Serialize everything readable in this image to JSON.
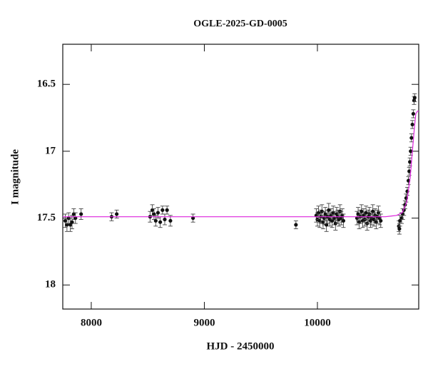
{
  "chart_data": {
    "type": "scatter",
    "title": "OGLE-2025-GD-0005",
    "x_label": "HJD - 2450000",
    "y_label": "I magnitude",
    "xlim": [
      7748,
      10896
    ],
    "ylim": [
      16.2,
      18.18
    ],
    "y_inverted": true,
    "xticks": [
      8000,
      9000,
      10000
    ],
    "yticks": [
      16.5,
      17,
      17.5,
      18
    ],
    "points": {
      "color": "#111111",
      "x": [
        7770,
        7785,
        7800,
        7815,
        7830,
        7845,
        7860,
        7910,
        8180,
        8225,
        8520,
        8540,
        8555,
        8570,
        8590,
        8610,
        8630,
        8650,
        8670,
        8700,
        8900,
        9810,
        9990,
        10000,
        10010,
        10020,
        10030,
        10040,
        10050,
        10060,
        10070,
        10080,
        10090,
        10100,
        10110,
        10120,
        10130,
        10140,
        10150,
        10160,
        10170,
        10180,
        10190,
        10200,
        10210,
        10220,
        10230,
        10350,
        10360,
        10370,
        10380,
        10390,
        10400,
        10410,
        10420,
        10430,
        10440,
        10450,
        10460,
        10470,
        10480,
        10490,
        10500,
        10510,
        10520,
        10530,
        10540,
        10550,
        10560,
        10720,
        10725,
        10730,
        10745,
        10755,
        10765,
        10775,
        10785,
        10795,
        10805,
        10812,
        10818,
        10825,
        10832,
        10840,
        10848,
        10855,
        10860
      ],
      "values": [
        17.52,
        17.55,
        17.5,
        17.55,
        17.53,
        17.47,
        17.5,
        17.47,
        17.49,
        17.47,
        17.49,
        17.44,
        17.47,
        17.52,
        17.46,
        17.53,
        17.44,
        17.51,
        17.44,
        17.52,
        17.5,
        17.55,
        17.48,
        17.51,
        17.46,
        17.52,
        17.49,
        17.45,
        17.53,
        17.5,
        17.47,
        17.55,
        17.49,
        17.44,
        17.51,
        17.48,
        17.52,
        17.46,
        17.5,
        17.54,
        17.47,
        17.49,
        17.51,
        17.45,
        17.5,
        17.48,
        17.52,
        17.5,
        17.47,
        17.53,
        17.49,
        17.45,
        17.52,
        17.48,
        17.51,
        17.46,
        17.54,
        17.49,
        17.47,
        17.52,
        17.5,
        17.45,
        17.51,
        17.48,
        17.53,
        17.49,
        17.46,
        17.5,
        17.52,
        17.56,
        17.58,
        17.52,
        17.5,
        17.47,
        17.44,
        17.4,
        17.35,
        17.3,
        17.22,
        17.15,
        17.08,
        17.0,
        16.9,
        16.8,
        16.72,
        16.62,
        16.6
      ],
      "errors": [
        0.05,
        0.05,
        0.04,
        0.05,
        0.05,
        0.04,
        0.04,
        0.04,
        0.03,
        0.03,
        0.04,
        0.04,
        0.04,
        0.04,
        0.04,
        0.04,
        0.03,
        0.04,
        0.03,
        0.04,
        0.03,
        0.03,
        0.05,
        0.05,
        0.05,
        0.05,
        0.05,
        0.05,
        0.05,
        0.05,
        0.05,
        0.05,
        0.05,
        0.05,
        0.05,
        0.05,
        0.05,
        0.05,
        0.05,
        0.05,
        0.05,
        0.05,
        0.05,
        0.05,
        0.05,
        0.05,
        0.05,
        0.05,
        0.05,
        0.05,
        0.05,
        0.05,
        0.05,
        0.05,
        0.05,
        0.05,
        0.05,
        0.05,
        0.05,
        0.05,
        0.05,
        0.05,
        0.05,
        0.05,
        0.05,
        0.05,
        0.05,
        0.05,
        0.05,
        0.04,
        0.04,
        0.04,
        0.04,
        0.04,
        0.04,
        0.03,
        0.03,
        0.03,
        0.03,
        0.03,
        0.03,
        0.03,
        0.03,
        0.03,
        0.03,
        0.03,
        0.03
      ]
    },
    "model": {
      "type": "line",
      "color": "#dd22dd",
      "x": [
        7748,
        10600,
        10650,
        10700,
        10750,
        10790,
        10820,
        10840,
        10855,
        10870,
        10885,
        10896
      ],
      "values": [
        17.49,
        17.49,
        17.485,
        17.48,
        17.46,
        17.38,
        17.2,
        17.0,
        16.85,
        16.72,
        16.7,
        16.7
      ]
    }
  }
}
